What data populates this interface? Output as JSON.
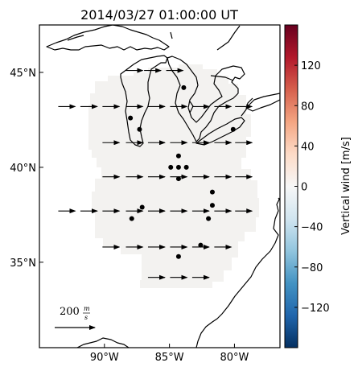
{
  "chart_data": {
    "type": "vector-map",
    "title": "2014/03/27 01:00:00 UT",
    "map": {
      "lon_range": [
        -95.0,
        -76.5
      ],
      "lat_range": [
        30.5,
        47.5
      ],
      "xticks": [
        {
          "value": -90,
          "label": "90°W"
        },
        {
          "value": -85,
          "label": "85°W"
        },
        {
          "value": -80,
          "label": "80°W"
        }
      ],
      "yticks": [
        {
          "value": 45,
          "label": "45°N"
        },
        {
          "value": 40,
          "label": "40°N"
        },
        {
          "value": 35,
          "label": "35°N"
        }
      ]
    },
    "colorbar": {
      "label": "Vertical wind [m/s]",
      "range": [
        -160,
        160
      ],
      "colormap": "RdBu_r",
      "ticks": [
        -120,
        -80,
        -40,
        0,
        40,
        80,
        120
      ],
      "tick_labels": [
        "−120",
        "−80",
        "−40",
        "0",
        "40",
        "80",
        "120"
      ]
    },
    "reference_vector": {
      "label": "200",
      "unit_num": "m",
      "unit_den": "s",
      "speed_m_s": 200
    },
    "coverage_color": "#f3f2f0",
    "vector_speed_m_s": 200,
    "vector_direction": "eastward",
    "vectors": [
      {
        "lon": -87.7,
        "lat": 45.1
      },
      {
        "lon": -86.3,
        "lat": 45.1
      },
      {
        "lon": -84.6,
        "lat": 45.1
      },
      {
        "lon": -92.9,
        "lat": 43.2
      },
      {
        "lon": -91.2,
        "lat": 43.2
      },
      {
        "lon": -89.5,
        "lat": 43.2
      },
      {
        "lon": -87.7,
        "lat": 43.2
      },
      {
        "lon": -86.0,
        "lat": 43.2
      },
      {
        "lon": -84.3,
        "lat": 43.2
      },
      {
        "lon": -82.6,
        "lat": 43.2
      },
      {
        "lon": -80.9,
        "lat": 43.2
      },
      {
        "lon": -79.3,
        "lat": 43.2
      },
      {
        "lon": -89.5,
        "lat": 41.3
      },
      {
        "lon": -87.7,
        "lat": 41.3
      },
      {
        "lon": -86.0,
        "lat": 41.3
      },
      {
        "lon": -84.3,
        "lat": 41.3
      },
      {
        "lon": -82.6,
        "lat": 41.3
      },
      {
        "lon": -80.9,
        "lat": 41.3
      },
      {
        "lon": -79.3,
        "lat": 41.3
      },
      {
        "lon": -89.5,
        "lat": 39.5
      },
      {
        "lon": -87.7,
        "lat": 39.5
      },
      {
        "lon": -86.0,
        "lat": 39.5
      },
      {
        "lon": -84.3,
        "lat": 39.5
      },
      {
        "lon": -82.6,
        "lat": 39.5
      },
      {
        "lon": -80.9,
        "lat": 39.5
      },
      {
        "lon": -79.3,
        "lat": 39.5
      },
      {
        "lon": -92.9,
        "lat": 37.7
      },
      {
        "lon": -91.2,
        "lat": 37.7
      },
      {
        "lon": -89.5,
        "lat": 37.7
      },
      {
        "lon": -87.7,
        "lat": 37.7
      },
      {
        "lon": -86.0,
        "lat": 37.7
      },
      {
        "lon": -84.3,
        "lat": 37.7
      },
      {
        "lon": -82.6,
        "lat": 37.7
      },
      {
        "lon": -80.9,
        "lat": 37.7
      },
      {
        "lon": -79.3,
        "lat": 37.7
      },
      {
        "lon": -89.5,
        "lat": 35.8
      },
      {
        "lon": -87.7,
        "lat": 35.8
      },
      {
        "lon": -86.0,
        "lat": 35.8
      },
      {
        "lon": -84.3,
        "lat": 35.8
      },
      {
        "lon": -82.6,
        "lat": 35.8
      },
      {
        "lon": -80.9,
        "lat": 35.8
      },
      {
        "lon": -86.0,
        "lat": 34.2
      },
      {
        "lon": -84.3,
        "lat": 34.2
      },
      {
        "lon": -82.6,
        "lat": 34.2
      }
    ],
    "stations": [
      {
        "lon": -83.9,
        "lat": 44.2
      },
      {
        "lon": -88.0,
        "lat": 42.6
      },
      {
        "lon": -87.3,
        "lat": 42.0
      },
      {
        "lon": -80.1,
        "lat": 42.0
      },
      {
        "lon": -84.3,
        "lat": 40.6
      },
      {
        "lon": -84.9,
        "lat": 40.0
      },
      {
        "lon": -84.3,
        "lat": 40.0
      },
      {
        "lon": -83.7,
        "lat": 40.0
      },
      {
        "lon": -84.3,
        "lat": 39.4
      },
      {
        "lon": -81.7,
        "lat": 38.7
      },
      {
        "lon": -81.7,
        "lat": 38.0
      },
      {
        "lon": -87.1,
        "lat": 37.9
      },
      {
        "lon": -87.9,
        "lat": 37.3
      },
      {
        "lon": -82.0,
        "lat": 37.3
      },
      {
        "lon": -82.6,
        "lat": 35.9
      },
      {
        "lon": -84.3,
        "lat": 35.3
      }
    ]
  }
}
